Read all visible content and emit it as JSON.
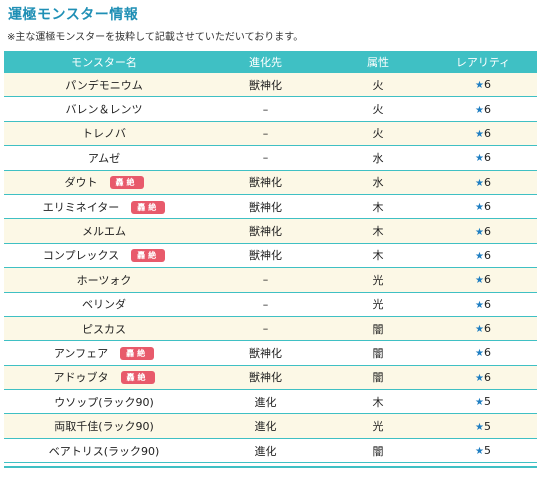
{
  "title": "運極モンスター情報",
  "note": "※主な運極モンスターを抜粋して記載させていただいております。",
  "columns": [
    "モンスター名",
    "進化先",
    "属性",
    "レアリティ"
  ],
  "star_icon": "star-icon",
  "badge_color": "#e85a6b",
  "header_color": "#3fc0c4",
  "rows": [
    {
      "name": "パンデモニウム",
      "badge": "",
      "evo": "獣神化",
      "attr": "火",
      "rarity": "6"
    },
    {
      "name": "バレン＆レンツ",
      "badge": "",
      "evo": "–",
      "attr": "火",
      "rarity": "6"
    },
    {
      "name": "トレノバ",
      "badge": "",
      "evo": "–",
      "attr": "火",
      "rarity": "6"
    },
    {
      "name": "アムゼ",
      "badge": "",
      "evo": "–",
      "attr": "水",
      "rarity": "6"
    },
    {
      "name": "ダウト",
      "badge": "轟絶",
      "evo": "獣神化",
      "attr": "水",
      "rarity": "6"
    },
    {
      "name": "エリミネイター",
      "badge": "轟絶",
      "evo": "獣神化",
      "attr": "木",
      "rarity": "6"
    },
    {
      "name": "メルエム",
      "badge": "",
      "evo": "獣神化",
      "attr": "木",
      "rarity": "6"
    },
    {
      "name": "コンプレックス",
      "badge": "轟絶",
      "evo": "獣神化",
      "attr": "木",
      "rarity": "6"
    },
    {
      "name": "ホーツォク",
      "badge": "",
      "evo": "–",
      "attr": "光",
      "rarity": "6"
    },
    {
      "name": "ベリンダ",
      "badge": "",
      "evo": "–",
      "attr": "光",
      "rarity": "6"
    },
    {
      "name": "ピスカス",
      "badge": "",
      "evo": "–",
      "attr": "闇",
      "rarity": "6"
    },
    {
      "name": "アンフェア",
      "badge": "轟絶",
      "evo": "獣神化",
      "attr": "闇",
      "rarity": "6"
    },
    {
      "name": "アドゥブタ",
      "badge": "轟絶",
      "evo": "獣神化",
      "attr": "闇",
      "rarity": "6"
    },
    {
      "name": "ウソップ(ラック90)",
      "badge": "",
      "evo": "進化",
      "attr": "木",
      "rarity": "5"
    },
    {
      "name": "両取千佳(ラック90)",
      "badge": "",
      "evo": "進化",
      "attr": "光",
      "rarity": "5"
    },
    {
      "name": "ベアトリス(ラック90)",
      "badge": "",
      "evo": "進化",
      "attr": "闇",
      "rarity": "5"
    }
  ]
}
